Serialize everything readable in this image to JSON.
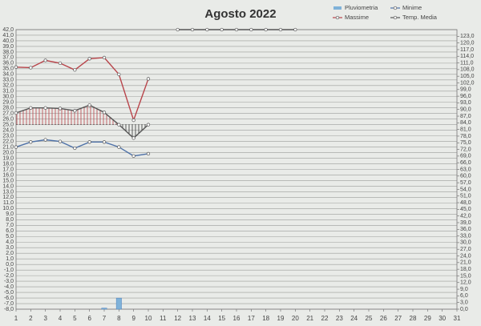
{
  "chart_data": {
    "type": "line",
    "title": "Agosto 2022",
    "x": [
      1,
      2,
      3,
      4,
      5,
      6,
      7,
      8,
      9,
      10,
      11,
      12,
      13,
      14,
      15,
      16,
      17,
      18,
      19,
      20,
      21,
      22,
      23,
      24,
      25,
      26,
      27,
      28,
      29,
      30,
      31
    ],
    "xlim": [
      1,
      31
    ],
    "xticks": [
      1,
      2,
      3,
      4,
      5,
      6,
      7,
      8,
      9,
      10,
      11,
      12,
      13,
      14,
      15,
      16,
      17,
      18,
      19,
      20,
      21,
      22,
      23,
      24,
      25,
      26,
      27,
      28,
      29,
      30,
      31
    ],
    "ylim": [
      -8,
      42
    ],
    "y2lim": [
      0,
      126
    ],
    "grid": true,
    "fill_baseline": 25,
    "series": [
      {
        "name": "Pluviometria",
        "type": "bar",
        "axis": "y2",
        "color": "#7fb2d9",
        "values": [
          null,
          null,
          null,
          null,
          null,
          null,
          0.5,
          5.0,
          null,
          null,
          null,
          null,
          null,
          null,
          null,
          null,
          null,
          null,
          null,
          null,
          null,
          null,
          null,
          null,
          null,
          null,
          null,
          null,
          null,
          null,
          null
        ]
      },
      {
        "name": "Minime",
        "type": "line",
        "color": "#4f72a8",
        "values": [
          21.0,
          21.9,
          22.3,
          22.0,
          20.8,
          21.9,
          21.9,
          21.0,
          19.4,
          19.8,
          null,
          null,
          null,
          null,
          null,
          null,
          null,
          null,
          null,
          null,
          null,
          null,
          null,
          null,
          null,
          null,
          null,
          null,
          null,
          null,
          null
        ]
      },
      {
        "name": "Massime",
        "type": "line",
        "color": "#b8444a",
        "values": [
          35.3,
          35.2,
          36.5,
          36.0,
          34.8,
          36.8,
          37.0,
          34.0,
          25.8,
          33.2,
          null,
          null,
          null,
          null,
          null,
          null,
          null,
          null,
          null,
          null,
          null,
          null,
          null,
          null,
          null,
          null,
          null,
          null,
          null,
          null,
          null
        ]
      },
      {
        "name": "Temp. Media",
        "type": "line",
        "color": "#555555",
        "hatch": true,
        "values": [
          27.1,
          28.0,
          28.0,
          27.9,
          27.5,
          28.5,
          27.2,
          25.0,
          22.6,
          25.0,
          null,
          42.0,
          42.0,
          42.0,
          42.0,
          42.0,
          42.0,
          42.0,
          42.0,
          42.0,
          null,
          null,
          null,
          null,
          null,
          null,
          null,
          null,
          null,
          null,
          null
        ]
      }
    ],
    "yticks": [
      {
        "value": -8,
        "label": "-8,0"
      },
      {
        "value": -7,
        "label": "-7,0"
      },
      {
        "value": -6,
        "label": "-6,0"
      },
      {
        "value": -5,
        "label": "-5,0"
      },
      {
        "value": -4,
        "label": "-4,0"
      },
      {
        "value": -3,
        "label": "-3,0"
      },
      {
        "value": -2,
        "label": "-2,0"
      },
      {
        "value": -1,
        "label": "-1,0"
      },
      {
        "value": 0,
        "label": "0,0"
      },
      {
        "value": 1,
        "label": "1,0"
      },
      {
        "value": 2,
        "label": "2,0"
      },
      {
        "value": 3,
        "label": "3,0"
      },
      {
        "value": 4,
        "label": "4,0"
      },
      {
        "value": 5,
        "label": "5,0"
      },
      {
        "value": 6,
        "label": "6,0"
      },
      {
        "value": 7,
        "label": "7,0"
      },
      {
        "value": 8,
        "label": "8,0"
      },
      {
        "value": 9,
        "label": "9,0"
      },
      {
        "value": 10,
        "label": "10,0"
      },
      {
        "value": 11,
        "label": "11,0"
      },
      {
        "value": 12,
        "label": "12,0"
      },
      {
        "value": 13,
        "label": "13,0"
      },
      {
        "value": 14,
        "label": "14,0"
      },
      {
        "value": 15,
        "label": "15,0"
      },
      {
        "value": 16,
        "label": "16,0"
      },
      {
        "value": 17,
        "label": "17,0"
      },
      {
        "value": 18,
        "label": "18,0"
      },
      {
        "value": 19,
        "label": "19,0"
      },
      {
        "value": 20,
        "label": "20,0"
      },
      {
        "value": 21,
        "label": "21,0"
      },
      {
        "value": 22,
        "label": "22,0"
      },
      {
        "value": 23,
        "label": "23,0"
      },
      {
        "value": 24,
        "label": "24,0"
      },
      {
        "value": 25,
        "label": "25,0"
      },
      {
        "value": 26,
        "label": "26,0"
      },
      {
        "value": 27,
        "label": "27,0"
      },
      {
        "value": 28,
        "label": "28,0"
      },
      {
        "value": 29,
        "label": "29,0"
      },
      {
        "value": 30,
        "label": "30,0"
      },
      {
        "value": 31,
        "label": "31,0"
      },
      {
        "value": 32,
        "label": "32,0"
      },
      {
        "value": 33,
        "label": "33,0"
      },
      {
        "value": 34,
        "label": "34,0"
      },
      {
        "value": 35,
        "label": "35,0"
      },
      {
        "value": 36,
        "label": "36,0"
      },
      {
        "value": 37,
        "label": "37,0"
      },
      {
        "value": 38,
        "label": "38,0"
      },
      {
        "value": 39,
        "label": "39,0"
      },
      {
        "value": 40,
        "label": "40,0"
      },
      {
        "value": 41,
        "label": "41,0"
      },
      {
        "value": 42,
        "label": "42,0"
      }
    ],
    "y2ticks": [
      {
        "value": 0,
        "label": "0,0"
      },
      {
        "value": 3,
        "label": "3,0"
      },
      {
        "value": 6,
        "label": "6,0"
      },
      {
        "value": 9,
        "label": "9,0"
      },
      {
        "value": 12,
        "label": "12,0"
      },
      {
        "value": 15,
        "label": "15,0"
      },
      {
        "value": 18,
        "label": "18,0"
      },
      {
        "value": 21,
        "label": "21,0"
      },
      {
        "value": 24,
        "label": "24,0"
      },
      {
        "value": 27,
        "label": "27,0"
      },
      {
        "value": 30,
        "label": "30,0"
      },
      {
        "value": 33,
        "label": "33,0"
      },
      {
        "value": 36,
        "label": "36,0"
      },
      {
        "value": 39,
        "label": "39,0"
      },
      {
        "value": 42,
        "label": "42,0"
      },
      {
        "value": 45,
        "label": "45,0"
      },
      {
        "value": 48,
        "label": "48,0"
      },
      {
        "value": 51,
        "label": "51,0"
      },
      {
        "value": 54,
        "label": "54,0"
      },
      {
        "value": 57,
        "label": "57,0"
      },
      {
        "value": 60,
        "label": "60,0"
      },
      {
        "value": 63,
        "label": "63,0"
      },
      {
        "value": 66,
        "label": "66,0"
      },
      {
        "value": 69,
        "label": "69,0"
      },
      {
        "value": 72,
        "label": "72,0"
      },
      {
        "value": 75,
        "label": "75,0"
      },
      {
        "value": 78,
        "label": "78,0"
      },
      {
        "value": 81,
        "label": "81,0"
      },
      {
        "value": 84,
        "label": "84,0"
      },
      {
        "value": 87,
        "label": "87,0"
      },
      {
        "value": 90,
        "label": "90,0"
      },
      {
        "value": 93,
        "label": "93,0"
      },
      {
        "value": 96,
        "label": "96,0"
      },
      {
        "value": 99,
        "label": "99,0"
      },
      {
        "value": 102,
        "label": "102,0"
      },
      {
        "value": 105,
        "label": "105,0"
      },
      {
        "value": 108,
        "label": "108,0"
      },
      {
        "value": 111,
        "label": "111,0"
      },
      {
        "value": 114,
        "label": "114,0"
      },
      {
        "value": 117,
        "label": "117,0"
      },
      {
        "value": 120,
        "label": "120,0"
      },
      {
        "value": 123,
        "label": "123,0"
      }
    ]
  }
}
